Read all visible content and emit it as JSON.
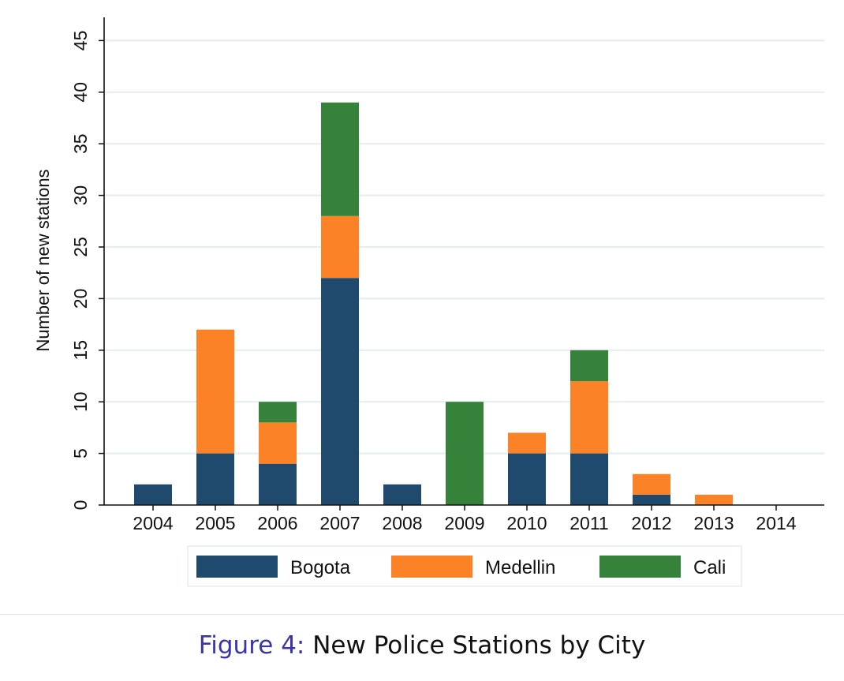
{
  "caption": {
    "label": "Figure 4:",
    "text": "New Police Stations by City",
    "label_color": "#3b36a8"
  },
  "chart_data": {
    "type": "bar",
    "stacked": true,
    "title": "",
    "xlabel": "",
    "ylabel": "Number of new stations",
    "ylim": [
      0,
      45
    ],
    "yticks": [
      0,
      5,
      10,
      15,
      20,
      25,
      30,
      35,
      40,
      45
    ],
    "grid": true,
    "legend_position": "bottom",
    "categories": [
      "2004",
      "2005",
      "2006",
      "2007",
      "2008",
      "2009",
      "2010",
      "2011",
      "2012",
      "2013",
      "2014"
    ],
    "series": [
      {
        "name": "Bogota",
        "color": "#1f4a6e",
        "values": [
          2,
          5,
          4,
          22,
          2,
          0,
          5,
          5,
          1,
          0,
          0
        ]
      },
      {
        "name": "Medellin",
        "color": "#fb8226",
        "values": [
          0,
          12,
          4,
          6,
          0,
          0,
          2,
          7,
          2,
          1,
          0
        ]
      },
      {
        "name": "Cali",
        "color": "#37823a",
        "values": [
          0,
          0,
          2,
          11,
          0,
          10,
          0,
          3,
          0,
          0,
          0
        ]
      }
    ]
  }
}
